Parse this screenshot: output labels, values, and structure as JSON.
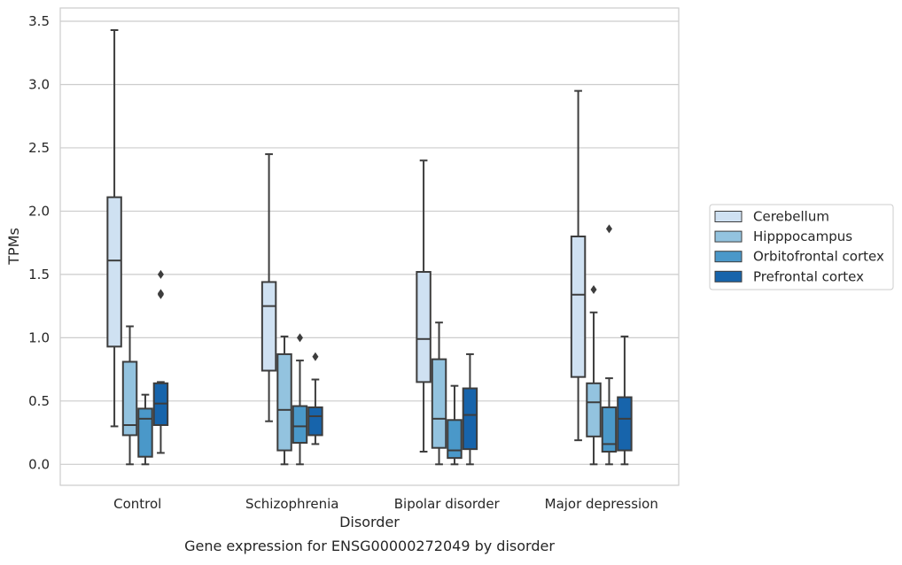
{
  "chart_data": {
    "type": "box",
    "title": "",
    "caption": "Gene expression for ENSG00000272049 by disorder",
    "xlabel": "Disorder",
    "ylabel": "TPMs",
    "categories": [
      "Control",
      "Schizophrenia",
      "Bipolar disorder",
      "Major depression"
    ],
    "ylim": [
      -0.16,
      3.6
    ],
    "yticks": [
      0.0,
      0.5,
      1.0,
      1.5,
      2.0,
      2.5,
      3.0,
      3.5
    ],
    "ytick_labels": [
      "0.0",
      "0.5",
      "1.0",
      "1.5",
      "2.0",
      "2.5",
      "3.0",
      "3.5"
    ],
    "grid": "y",
    "legend_position": "right",
    "series": [
      {
        "name": "Cerebellum",
        "color": "#cfe1f2",
        "boxes": [
          {
            "whislo": 0.3,
            "q1": 0.93,
            "med": 1.61,
            "q3": 2.11,
            "whishi": 3.43,
            "fliers": []
          },
          {
            "whislo": 0.34,
            "q1": 0.74,
            "med": 1.25,
            "q3": 1.44,
            "whishi": 2.45,
            "fliers": []
          },
          {
            "whislo": 0.1,
            "q1": 0.65,
            "med": 0.99,
            "q3": 1.52,
            "whishi": 2.4,
            "fliers": []
          },
          {
            "whislo": 0.19,
            "q1": 0.69,
            "med": 1.34,
            "q3": 1.8,
            "whishi": 2.95,
            "fliers": []
          }
        ]
      },
      {
        "name": "Hipppocampus",
        "color": "#93c3df",
        "boxes": [
          {
            "whislo": 0.0,
            "q1": 0.23,
            "med": 0.31,
            "q3": 0.81,
            "whishi": 1.09,
            "fliers": []
          },
          {
            "whislo": 0.0,
            "q1": 0.11,
            "med": 0.43,
            "q3": 0.87,
            "whishi": 1.01,
            "fliers": []
          },
          {
            "whislo": 0.0,
            "q1": 0.13,
            "med": 0.36,
            "q3": 0.83,
            "whishi": 1.12,
            "fliers": []
          },
          {
            "whislo": 0.0,
            "q1": 0.22,
            "med": 0.49,
            "q3": 0.64,
            "whishi": 1.2,
            "fliers": [
              1.38
            ]
          }
        ]
      },
      {
        "name": "Orbitofrontal cortex",
        "color": "#4a98c9",
        "boxes": [
          {
            "whislo": 0.0,
            "q1": 0.06,
            "med": 0.36,
            "q3": 0.44,
            "whishi": 0.55,
            "fliers": []
          },
          {
            "whislo": 0.0,
            "q1": 0.17,
            "med": 0.3,
            "q3": 0.46,
            "whishi": 0.82,
            "fliers": [
              1.0
            ]
          },
          {
            "whislo": 0.0,
            "q1": 0.05,
            "med": 0.11,
            "q3": 0.35,
            "whishi": 0.62,
            "fliers": []
          },
          {
            "whislo": 0.0,
            "q1": 0.1,
            "med": 0.16,
            "q3": 0.45,
            "whishi": 0.68,
            "fliers": [
              1.86
            ]
          }
        ]
      },
      {
        "name": "Prefrontal cortex",
        "color": "#1764ab",
        "boxes": [
          {
            "whislo": 0.09,
            "q1": 0.31,
            "med": 0.48,
            "q3": 0.64,
            "whishi": 0.65,
            "fliers": [
              1.34,
              1.35,
              1.5
            ]
          },
          {
            "whislo": 0.16,
            "q1": 0.23,
            "med": 0.38,
            "q3": 0.45,
            "whishi": 0.67,
            "fliers": [
              0.85
            ]
          },
          {
            "whislo": 0.0,
            "q1": 0.12,
            "med": 0.39,
            "q3": 0.6,
            "whishi": 0.87,
            "fliers": []
          },
          {
            "whislo": 0.0,
            "q1": 0.11,
            "med": 0.36,
            "q3": 0.53,
            "whishi": 1.01,
            "fliers": []
          }
        ]
      }
    ]
  }
}
